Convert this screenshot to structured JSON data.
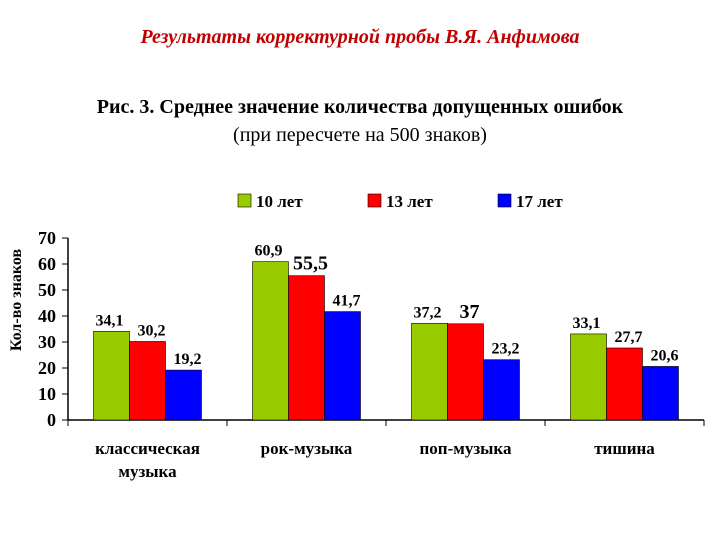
{
  "header": {
    "title": "Результаты  корректурной пробы   В.Я. Анфимова",
    "subtitle_line1": "Рис. 3. Среднее  значение    количества допущенных ошибок",
    "subtitle_line2": "(при пересчете на 500 знаков)"
  },
  "chart_data": {
    "type": "bar",
    "title": "",
    "xlabel": "",
    "ylabel": "Кол-во   знаков",
    "ylim": [
      0,
      70
    ],
    "yticks": [
      0,
      10,
      20,
      30,
      40,
      50,
      60,
      70
    ],
    "categories": [
      [
        "классическая",
        "музыка"
      ],
      [
        "рок-музыка"
      ],
      [
        "поп-музыка"
      ],
      [
        "тишина"
      ]
    ],
    "legend_position": "top",
    "series": [
      {
        "name": "10 лет",
        "color": "#99cc00",
        "values": [
          34.1,
          60.9,
          37.2,
          33.1
        ],
        "labels": [
          "34,1",
          "60,9",
          "37,2",
          "33,1"
        ]
      },
      {
        "name": "13 лет",
        "color": "#ff0000",
        "values": [
          30.2,
          55.5,
          37,
          27.7
        ],
        "labels": [
          "30,2",
          "55,5",
          "37",
          "27,7"
        ]
      },
      {
        "name": "17 лет",
        "color": "#0000ff",
        "values": [
          19.2,
          41.7,
          23.2,
          20.6
        ],
        "labels": [
          "19,2",
          "41,7",
          "23,2",
          "20,6"
        ]
      }
    ]
  }
}
